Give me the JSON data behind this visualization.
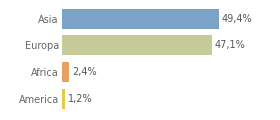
{
  "categories": [
    "America",
    "Africa",
    "Europa",
    "Asia"
  ],
  "values": [
    1.2,
    2.4,
    47.1,
    49.4
  ],
  "labels": [
    "1,2%",
    "2,4%",
    "47,1%",
    "49,4%"
  ],
  "bar_colors": [
    "#e8c84a",
    "#e8a060",
    "#c5cc9a",
    "#7ba3c8"
  ],
  "background_color": "#ffffff",
  "plot_bg_color": "#ffffff",
  "xlim": [
    0,
    58
  ],
  "label_fontsize": 7.0,
  "tick_fontsize": 7.0,
  "grid_color": "#dddddd",
  "bar_height": 0.75
}
